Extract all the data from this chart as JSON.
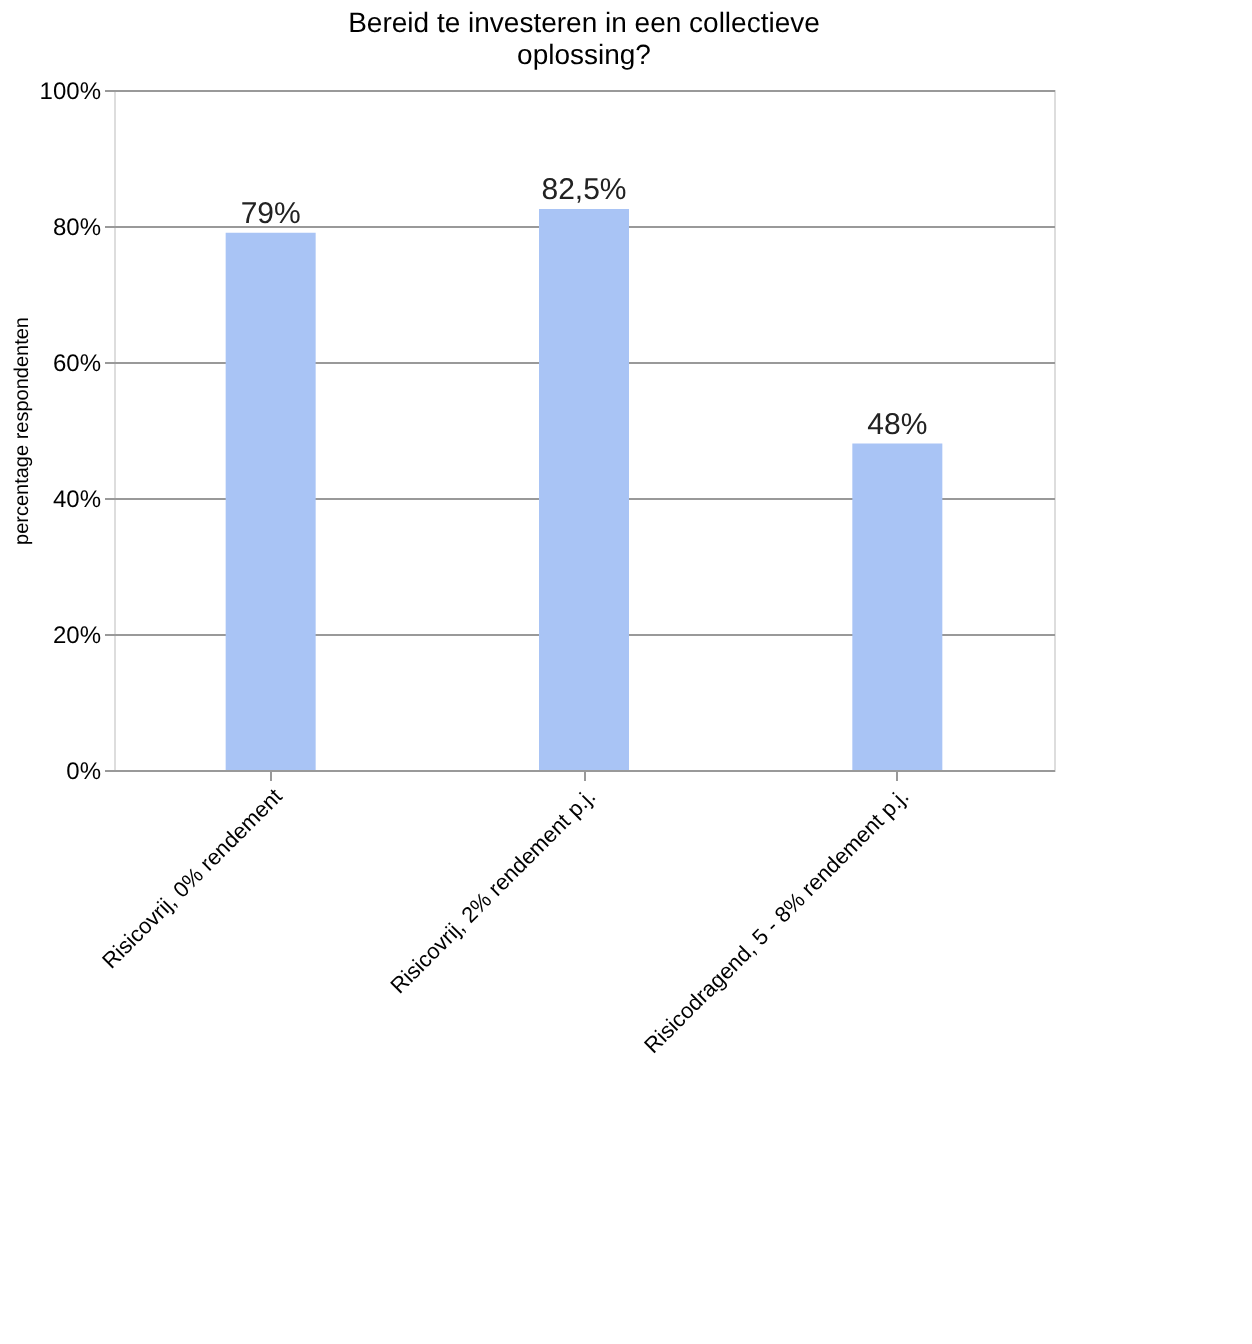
{
  "chart_data": {
    "type": "bar",
    "title": "Bereid te investeren in een collectieve oplossing?",
    "categories": [
      "Risicovrij, 0% rendement",
      "Risicovrij, 2% rendement p.j.",
      "Risicodragend, 5 - 8% rendement p.j."
    ],
    "values": [
      79,
      82.5,
      48
    ],
    "color": "#a9c4f5",
    "ylabel": "percentage respondenten",
    "ylim": [
      0,
      100
    ],
    "yticks": [
      {
        "value": 0,
        "label": "0%"
      },
      {
        "value": 20,
        "label": "20%"
      },
      {
        "value": 40,
        "label": "40%"
      },
      {
        "value": 60,
        "label": "60%"
      },
      {
        "value": 80,
        "label": "80%"
      },
      {
        "value": 100,
        "label": "100%"
      }
    ],
    "value_labels": [
      "79%",
      "82,5%",
      "48%"
    ],
    "grid": "y"
  }
}
